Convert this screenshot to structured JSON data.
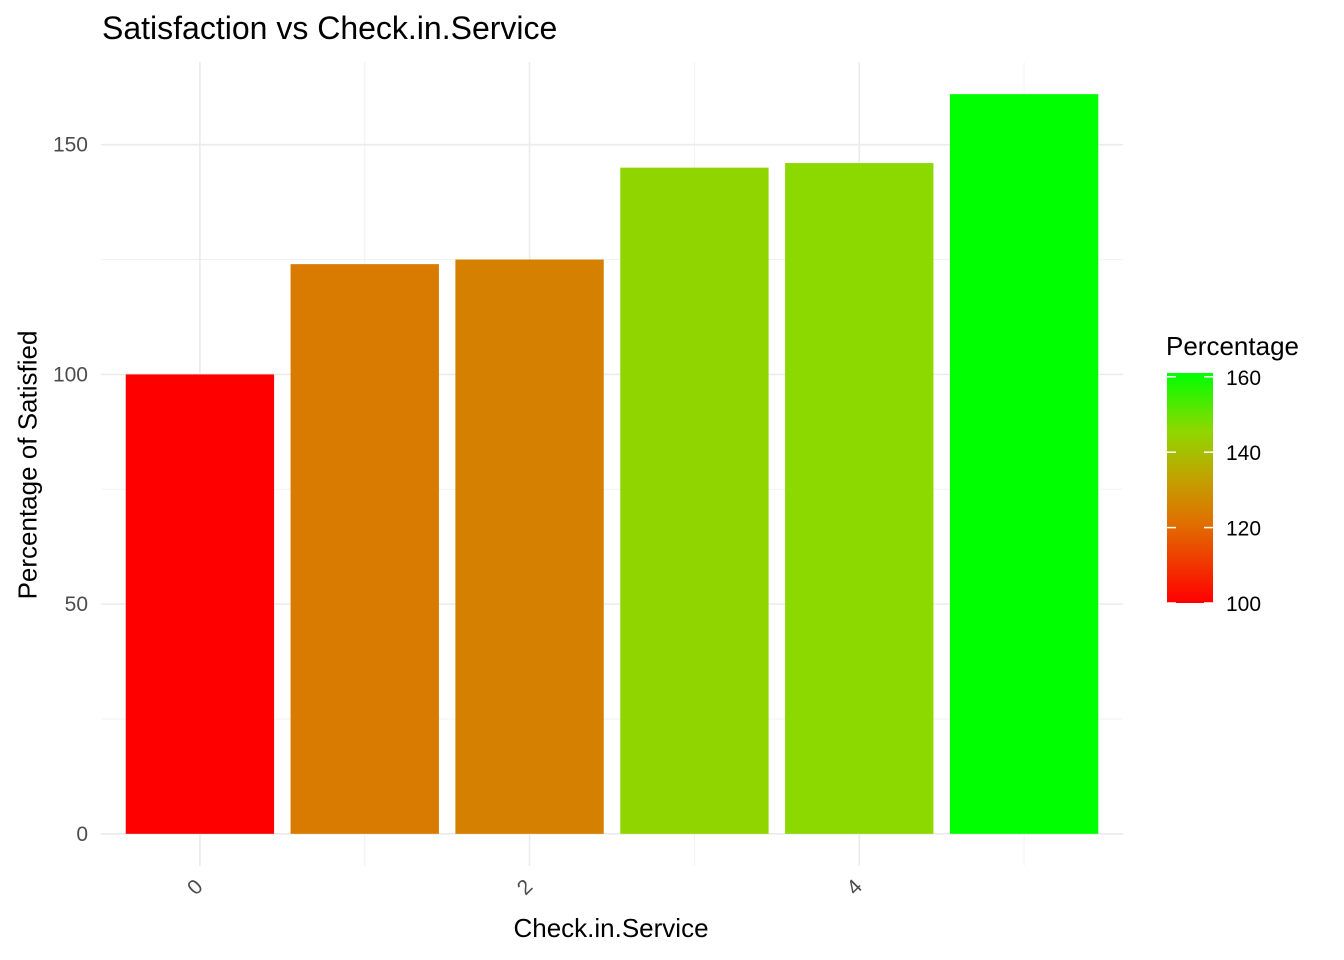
{
  "chart_data": {
    "type": "bar",
    "title": "Satisfaction vs Check.in.Service",
    "xlabel": "Check.in.Service",
    "ylabel": "Percentage of Satisfied",
    "categories": [
      0,
      1,
      2,
      3,
      4,
      5
    ],
    "values": [
      100,
      124,
      125,
      145,
      146,
      161
    ],
    "x_ticks": [
      0,
      2,
      4
    ],
    "xlim": [
      -0.6,
      5.6
    ],
    "y_ticks": [
      0,
      50,
      100,
      150
    ],
    "ylim": [
      -7,
      168
    ],
    "grid": true,
    "legend": {
      "title": "Percentage",
      "type": "colorbar",
      "ticks": [
        100,
        120,
        140,
        160
      ],
      "range": [
        100,
        161
      ],
      "position": "right",
      "low_color": "#ff0000",
      "high_color": "#00ff00"
    }
  }
}
